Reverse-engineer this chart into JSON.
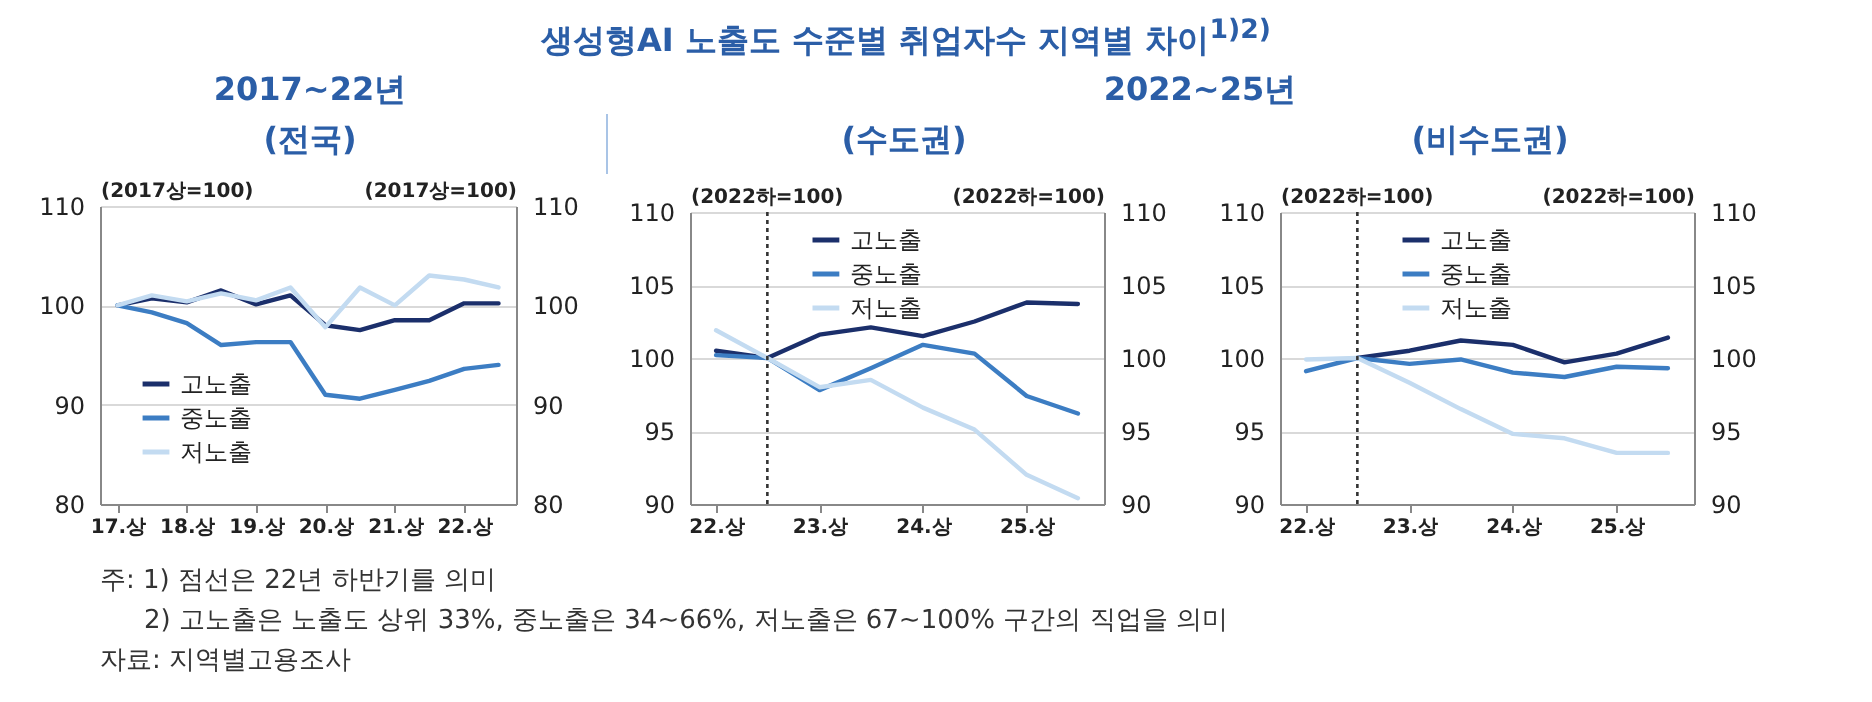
{
  "chart_data": [
    {
      "type": "line",
      "title": "(전국)",
      "subtitle": "2017~22년",
      "annotations": [
        "생성형AI 노출도 수준별 취업자수 지역별 차이$^{1)2)}$"
      ],
      "x": [
        "2017-01",
        "2017-07",
        "2018-01",
        "2018-07",
        "2019-01",
        "2019-07",
        "2020-01",
        "2020-07",
        "2021-01",
        "2021-07",
        "2022-01",
        "2022-07"
      ],
      "series": [
        {
          "name": "고노출",
          "color": "#1b2f6b",
          "values": [
            100,
            100.7,
            100.3,
            101.5,
            100.1,
            101,
            98,
            97.5,
            98.5,
            98.5,
            100.2,
            100.2
          ]
        },
        {
          "name": "중노출",
          "color": "#3c7dc3",
          "values": [
            100,
            99.3,
            98.2,
            96,
            96.3,
            96.3,
            91,
            90.6,
            91.5,
            92.4,
            93.6,
            94
          ]
        },
        {
          "name": "저노출",
          "color": "#c3dbf1",
          "values": [
            100,
            101,
            100.4,
            101.2,
            100.5,
            101.8,
            97.8,
            101.8,
            100,
            103,
            102.6,
            101.8
          ]
        }
      ],
      "xlim": [
        "2016-10",
        "2022-10"
      ],
      "xticks": [
        {
          "value": "2017-01",
          "label": "17.상"
        },
        {
          "value": "2018-01",
          "label": "18.상"
        },
        {
          "value": "2019-01",
          "label": "19.상"
        },
        {
          "value": "2020-01",
          "label": "20.상"
        },
        {
          "value": "2021-01",
          "label": "21.상"
        },
        {
          "value": "2022-01",
          "label": "22.상"
        }
      ],
      "ylim": [
        80,
        110
      ],
      "yticks": [
        80,
        90,
        100,
        110
      ],
      "y2lim": [
        80,
        110
      ],
      "y2ticks": [
        80,
        90,
        100,
        110
      ],
      "ylabel": "(2017상=100)",
      "y2label": "(2017상=100)",
      "grid": "y",
      "legend": "bottom left"
    },
    {
      "type": "line",
      "title": "(수도권)",
      "subtitle": "2022~25년",
      "x": [
        "2022-01",
        "2022-07",
        "2023-01",
        "2023-07",
        "2024-01",
        "2024-07",
        "2025-01",
        "2025-07"
      ],
      "series": [
        {
          "name": "고노출",
          "color": "#1b2f6b",
          "values": [
            100.5,
            100,
            101.6,
            102.1,
            101.5,
            102.5,
            103.8,
            103.7
          ]
        },
        {
          "name": "중노출",
          "color": "#3c7dc3",
          "values": [
            100.2,
            100,
            97.8,
            99.3,
            100.9,
            100.3,
            97.4,
            96.2
          ]
        },
        {
          "name": "저노출",
          "color": "#c3dbf1",
          "values": [
            101.9,
            100,
            98,
            98.5,
            96.6,
            95.1,
            92,
            90.4
          ]
        }
      ],
      "xlim": [
        "2021-10",
        "2025-10"
      ],
      "xticks": [
        {
          "value": "2022-01",
          "label": "22.상"
        },
        {
          "value": "2023-01",
          "label": "23.상"
        },
        {
          "value": "2024-01",
          "label": "24.상"
        },
        {
          "value": "2025-01",
          "label": "25.상"
        }
      ],
      "ylim": [
        90,
        110
      ],
      "yticks": [
        90,
        95,
        100,
        105,
        110
      ],
      "y2lim": [
        90,
        110
      ],
      "y2ticks": [
        90,
        95,
        100,
        105,
        110
      ],
      "ylabel": "(2022하=100)",
      "y2label": "(2022하=100)",
      "ref_lines": [
        {
          "axis": "x",
          "value": "2022-07",
          "color": "#333333",
          "line_style": "dotted"
        }
      ],
      "grid": "y",
      "legend": "top"
    },
    {
      "type": "line",
      "title": "(비수도권)",
      "annotations": [
        "주: 1) 점선은 22년 하반기를 의미",
        "2) 고노출은 노출도 상위 33%, 중노출은 34~66%, 저노출은 67~100% 구간의 직업을 의미",
        "자료: 지역별고용조사"
      ],
      "x": [
        "2022-01",
        "2022-07",
        "2023-01",
        "2023-07",
        "2024-01",
        "2024-07",
        "2025-01",
        "2025-07"
      ],
      "series": [
        {
          "name": "고노출",
          "color": "#1b2f6b",
          "values": [
            null,
            100,
            100.5,
            101.2,
            100.9,
            99.7,
            100.3,
            101.4
          ]
        },
        {
          "name": "중노출",
          "color": "#3c7dc3",
          "values": [
            99.1,
            100,
            99.6,
            99.9,
            99,
            98.7,
            99.4,
            99.3
          ]
        },
        {
          "name": "저노출",
          "color": "#c3dbf1",
          "values": [
            99.9,
            100,
            98.3,
            96.5,
            94.8,
            94.5,
            93.5,
            93.5
          ]
        }
      ],
      "xlim": [
        "2021-10",
        "2025-10"
      ],
      "xticks": [
        {
          "value": "2022-01",
          "label": "22.상"
        },
        {
          "value": "2023-01",
          "label": "23.상"
        },
        {
          "value": "2024-01",
          "label": "24.상"
        },
        {
          "value": "2025-01",
          "label": "25.상"
        }
      ],
      "ylim": [
        90,
        110
      ],
      "yticks": [
        90,
        95,
        100,
        105,
        110
      ],
      "y2lim": [
        90,
        110
      ],
      "y2ticks": [
        90,
        95,
        100,
        105,
        110
      ],
      "ylabel": "(2022하=100)",
      "y2label": "(2022하=100)",
      "ref_lines": [
        {
          "axis": "x",
          "value": "2022-07",
          "color": "#333333",
          "line_style": "dotted"
        }
      ],
      "grid": "y",
      "legend": "top"
    }
  ]
}
